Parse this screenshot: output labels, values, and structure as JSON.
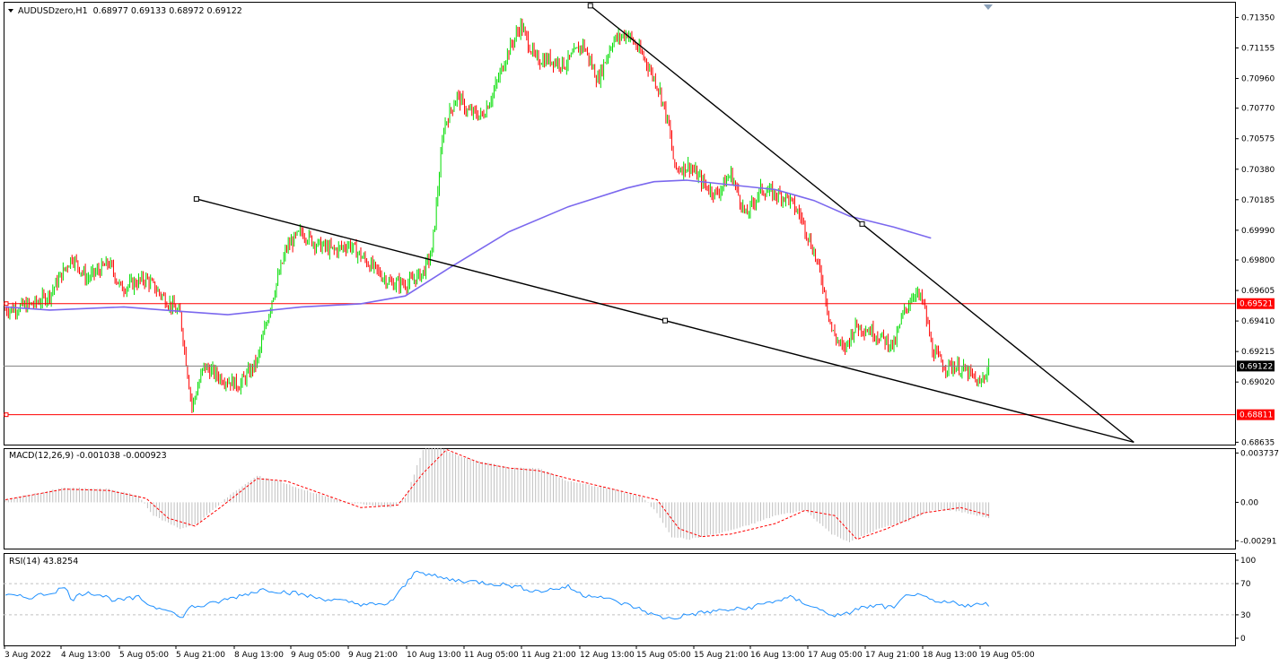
{
  "header": {
    "symbol": "AUDUSDzero,H1",
    "ohlc": "0.68977 0.69133 0.68972 0.69122",
    "macd_label": "MACD(12,26,9) -0.001038 -0.000923",
    "rsi_label": "RSI(14) 43.8254"
  },
  "colors": {
    "bull": "#00dd00",
    "bear": "#ff0000",
    "ma": "#7b68ee",
    "hline": "#ff0000",
    "current_line": "#808080",
    "trendline": "#000000",
    "macd_hist": "#c0c0c0",
    "macd_signal": "#ff0000",
    "rsi": "#1e90ff",
    "grid_level": "#c0c0c0"
  },
  "chart_data": [
    {
      "type": "candlestick",
      "panel": "price",
      "title": "AUDUSDzero,H1",
      "ylim": [
        0.6862,
        0.7145
      ],
      "y_ticks": [
        "0.71350",
        "0.71155",
        "0.70960",
        "0.70770",
        "0.70575",
        "0.70380",
        "0.70185",
        "0.69990",
        "0.69800",
        "0.69605",
        "0.69410",
        "0.69215",
        "0.69020",
        "0.68635"
      ],
      "price_tags": [
        {
          "label": "0.69521",
          "value": 0.69521,
          "kind": "hline"
        },
        {
          "label": "0.69122",
          "value": 0.69122,
          "kind": "current"
        },
        {
          "label": "0.68811",
          "value": 0.68811,
          "kind": "hline"
        }
      ],
      "x_labels": [
        "3 Aug 2022",
        "4 Aug 13:00",
        "5 Aug 05:00",
        "5 Aug 21:00",
        "8 Aug 13:00",
        "9 Aug 05:00",
        "9 Aug 21:00",
        "10 Aug 13:00",
        "11 Aug 05:00",
        "11 Aug 21:00",
        "12 Aug 13:00",
        "15 Aug 05:00",
        "15 Aug 21:00",
        "16 Aug 13:00",
        "17 Aug 05:00",
        "17 Aug 21:00",
        "18 Aug 13:00",
        "19 Aug 05:00"
      ],
      "close_path": [
        [
          0,
          0.6948
        ],
        [
          20,
          0.6952
        ],
        [
          30,
          0.6958
        ],
        [
          45,
          0.6982
        ],
        [
          55,
          0.6968
        ],
        [
          70,
          0.6978
        ],
        [
          78,
          0.6962
        ],
        [
          95,
          0.6968
        ],
        [
          108,
          0.6955
        ],
        [
          118,
          0.6945
        ],
        [
          126,
          0.6886
        ],
        [
          134,
          0.6912
        ],
        [
          145,
          0.6905
        ],
        [
          158,
          0.69
        ],
        [
          170,
          0.6915
        ],
        [
          180,
          0.6955
        ],
        [
          190,
          0.6988
        ],
        [
          200,
          0.6998
        ],
        [
          210,
          0.699
        ],
        [
          222,
          0.6986
        ],
        [
          232,
          0.699
        ],
        [
          245,
          0.6978
        ],
        [
          260,
          0.6965
        ],
        [
          272,
          0.6965
        ],
        [
          282,
          0.6972
        ],
        [
          288,
          0.6985
        ],
        [
          296,
          0.7065
        ],
        [
          305,
          0.7085
        ],
        [
          312,
          0.7075
        ],
        [
          322,
          0.7072
        ],
        [
          330,
          0.7088
        ],
        [
          338,
          0.711
        ],
        [
          348,
          0.713
        ],
        [
          358,
          0.7108
        ],
        [
          368,
          0.7108
        ],
        [
          378,
          0.7105
        ],
        [
          390,
          0.7118
        ],
        [
          400,
          0.7095
        ],
        [
          410,
          0.712
        ],
        [
          420,
          0.7125
        ],
        [
          432,
          0.7108
        ],
        [
          442,
          0.7088
        ],
        [
          448,
          0.7065
        ],
        [
          452,
          0.7038
        ],
        [
          462,
          0.704
        ],
        [
          472,
          0.7028
        ],
        [
          480,
          0.7022
        ],
        [
          490,
          0.7035
        ],
        [
          500,
          0.7008
        ],
        [
          510,
          0.7025
        ],
        [
          520,
          0.7022
        ],
        [
          528,
          0.702
        ],
        [
          537,
          0.7008
        ],
        [
          546,
          0.6985
        ],
        [
          552,
          0.6965
        ],
        [
          558,
          0.6935
        ],
        [
          566,
          0.6922
        ],
        [
          574,
          0.6938
        ],
        [
          584,
          0.6935
        ],
        [
          592,
          0.693
        ],
        [
          600,
          0.6925
        ],
        [
          606,
          0.6945
        ],
        [
          614,
          0.696
        ],
        [
          620,
          0.6952
        ],
        [
          626,
          0.6922
        ],
        [
          634,
          0.6912
        ],
        [
          642,
          0.6912
        ],
        [
          650,
          0.6908
        ],
        [
          658,
          0.69
        ],
        [
          664,
          0.6912
        ]
      ],
      "candle_count": 665,
      "moving_average": [
        [
          0,
          0.695
        ],
        [
          30,
          0.6948
        ],
        [
          80,
          0.695
        ],
        [
          120,
          0.6947
        ],
        [
          150,
          0.6945
        ],
        [
          200,
          0.695
        ],
        [
          240,
          0.6952
        ],
        [
          270,
          0.6957
        ],
        [
          300,
          0.6975
        ],
        [
          340,
          0.6998
        ],
        [
          380,
          0.7014
        ],
        [
          420,
          0.7026
        ],
        [
          438,
          0.703
        ],
        [
          460,
          0.7031
        ],
        [
          480,
          0.7029
        ],
        [
          500,
          0.7027
        ],
        [
          520,
          0.7025
        ],
        [
          546,
          0.7018
        ],
        [
          570,
          0.7008
        ],
        [
          600,
          0.7001
        ],
        [
          625,
          0.6994
        ]
      ],
      "trendlines": [
        {
          "from": [
            129,
            0.7019
          ],
          "to": [
            762,
            0.68635
          ]
        },
        {
          "from": [
            395,
            0.71425
          ],
          "to": [
            762,
            0.68635
          ]
        }
      ]
    },
    {
      "type": "bar+line",
      "panel": "macd",
      "title": "MACD(12,26,9) -0.001038 -0.000923",
      "ylim": [
        -0.0035,
        0.0041
      ],
      "y_ticks": [
        "0.003737",
        "0.00",
        "-0.00291"
      ],
      "histogram_path": [
        [
          0,
          0.0002
        ],
        [
          40,
          0.0011
        ],
        [
          70,
          0.001
        ],
        [
          90,
          0.0005
        ],
        [
          100,
          -0.001
        ],
        [
          118,
          -0.002
        ],
        [
          130,
          -0.0016
        ],
        [
          150,
          0.0004
        ],
        [
          170,
          0.002
        ],
        [
          185,
          0.0016
        ],
        [
          200,
          0.001
        ],
        [
          230,
          0.0
        ],
        [
          260,
          -0.0004
        ],
        [
          270,
          0.0003
        ],
        [
          282,
          0.004
        ],
        [
          292,
          0.0042
        ],
        [
          310,
          0.0034
        ],
        [
          340,
          0.0026
        ],
        [
          360,
          0.0026
        ],
        [
          380,
          0.0016
        ],
        [
          410,
          0.001
        ],
        [
          430,
          0.0004
        ],
        [
          440,
          -0.0008
        ],
        [
          450,
          -0.0026
        ],
        [
          462,
          -0.0028
        ],
        [
          480,
          -0.0024
        ],
        [
          500,
          -0.0018
        ],
        [
          520,
          -0.001
        ],
        [
          540,
          -0.0006
        ],
        [
          558,
          -0.0024
        ],
        [
          570,
          -0.003
        ],
        [
          590,
          -0.002
        ],
        [
          610,
          -0.0014
        ],
        [
          625,
          -0.0006
        ],
        [
          640,
          -0.0006
        ],
        [
          665,
          -0.0012
        ]
      ],
      "signal_path": [
        [
          0,
          0.0002
        ],
        [
          40,
          0.001
        ],
        [
          70,
          0.0009
        ],
        [
          95,
          0.0003
        ],
        [
          110,
          -0.0012
        ],
        [
          128,
          -0.0018
        ],
        [
          145,
          -0.0004
        ],
        [
          170,
          0.0018
        ],
        [
          190,
          0.0016
        ],
        [
          215,
          0.0006
        ],
        [
          240,
          -0.0004
        ],
        [
          265,
          -0.0002
        ],
        [
          282,
          0.0022
        ],
        [
          298,
          0.004
        ],
        [
          320,
          0.003
        ],
        [
          340,
          0.0026
        ],
        [
          360,
          0.0024
        ],
        [
          380,
          0.0018
        ],
        [
          410,
          0.001
        ],
        [
          440,
          0.0002
        ],
        [
          455,
          -0.002
        ],
        [
          470,
          -0.0026
        ],
        [
          490,
          -0.0024
        ],
        [
          520,
          -0.0016
        ],
        [
          540,
          -0.0006
        ],
        [
          560,
          -0.001
        ],
        [
          575,
          -0.0028
        ],
        [
          595,
          -0.002
        ],
        [
          620,
          -0.0008
        ],
        [
          645,
          -0.0004
        ],
        [
          665,
          -0.001
        ]
      ]
    },
    {
      "type": "line",
      "panel": "rsi",
      "title": "RSI(14) 43.8254",
      "ylim": [
        0,
        100
      ],
      "y_ticks": [
        "100",
        "70",
        "30",
        "0"
      ],
      "levels": [
        70,
        30
      ],
      "series": [
        {
          "values": [
            [
              0,
              55
            ],
            [
              15,
              52
            ],
            [
              30,
              58
            ],
            [
              40,
              65
            ],
            [
              45,
              50
            ],
            [
              55,
              60
            ],
            [
              65,
              55
            ],
            [
              75,
              48
            ],
            [
              90,
              52
            ],
            [
              100,
              40
            ],
            [
              110,
              38
            ],
            [
              118,
              25
            ],
            [
              125,
              40
            ],
            [
              135,
              42
            ],
            [
              150,
              50
            ],
            [
              165,
              58
            ],
            [
              175,
              63
            ],
            [
              185,
              60
            ],
            [
              195,
              58
            ],
            [
              210,
              52
            ],
            [
              225,
              48
            ],
            [
              240,
              44
            ],
            [
              255,
              42
            ],
            [
              262,
              50
            ],
            [
              270,
              68
            ],
            [
              278,
              88
            ],
            [
              288,
              80
            ],
            [
              300,
              75
            ],
            [
              320,
              72
            ],
            [
              340,
              68
            ],
            [
              360,
              60
            ],
            [
              380,
              66
            ],
            [
              390,
              55
            ],
            [
              400,
              55
            ],
            [
              410,
              48
            ],
            [
              425,
              40
            ],
            [
              440,
              28
            ],
            [
              450,
              25
            ],
            [
              460,
              30
            ],
            [
              480,
              35
            ],
            [
              500,
              38
            ],
            [
              520,
              48
            ],
            [
              530,
              52
            ],
            [
              540,
              45
            ],
            [
              555,
              32
            ],
            [
              565,
              28
            ],
            [
              575,
              38
            ],
            [
              590,
              42
            ],
            [
              600,
              38
            ],
            [
              610,
              58
            ],
            [
              620,
              52
            ],
            [
              630,
              45
            ],
            [
              640,
              46
            ],
            [
              650,
              42
            ],
            [
              665,
              44
            ]
          ]
        }
      ]
    }
  ]
}
